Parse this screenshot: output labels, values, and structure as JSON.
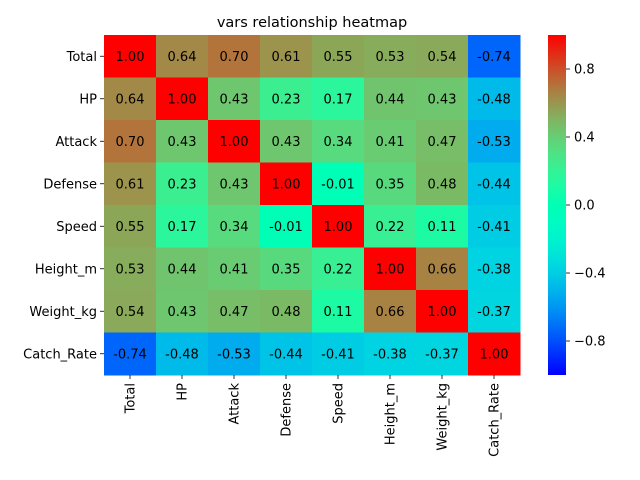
{
  "chart_data": {
    "type": "heatmap",
    "title": "vars relationship heatmap",
    "xlabel": "",
    "ylabel": "",
    "rows": [
      "Total",
      "HP",
      "Attack",
      "Defense",
      "Speed",
      "Height_m",
      "Weight_kg",
      "Catch_Rate"
    ],
    "cols": [
      "Total",
      "HP",
      "Attack",
      "Defense",
      "Speed",
      "Height_m",
      "Weight_kg",
      "Catch_Rate"
    ],
    "values": [
      [
        1.0,
        0.64,
        0.7,
        0.61,
        0.55,
        0.53,
        0.54,
        -0.74
      ],
      [
        0.64,
        1.0,
        0.43,
        0.23,
        0.17,
        0.44,
        0.43,
        -0.48
      ],
      [
        0.7,
        0.43,
        1.0,
        0.43,
        0.34,
        0.41,
        0.47,
        -0.53
      ],
      [
        0.61,
        0.23,
        0.43,
        1.0,
        -0.01,
        0.35,
        0.48,
        -0.44
      ],
      [
        0.55,
        0.17,
        0.34,
        -0.01,
        1.0,
        0.22,
        0.11,
        -0.41
      ],
      [
        0.53,
        0.44,
        0.41,
        0.35,
        0.22,
        1.0,
        0.66,
        -0.38
      ],
      [
        0.54,
        0.43,
        0.47,
        0.48,
        0.11,
        0.66,
        1.0,
        -0.37
      ],
      [
        -0.74,
        -0.48,
        -0.53,
        -0.44,
        -0.41,
        -0.38,
        -0.37,
        1.0
      ]
    ],
    "value_format": "2 decimals",
    "colormap": "rainbow",
    "vmin": -1,
    "vmax": 1,
    "colorbar_ticks": [
      0.8,
      0.4,
      0.0,
      -0.4,
      -0.8
    ],
    "colorbar_tick_labels": [
      "0.8",
      "0.4",
      "0.0",
      "−0.4",
      "−0.8"
    ],
    "grid": false,
    "legend": "colorbar-right"
  }
}
